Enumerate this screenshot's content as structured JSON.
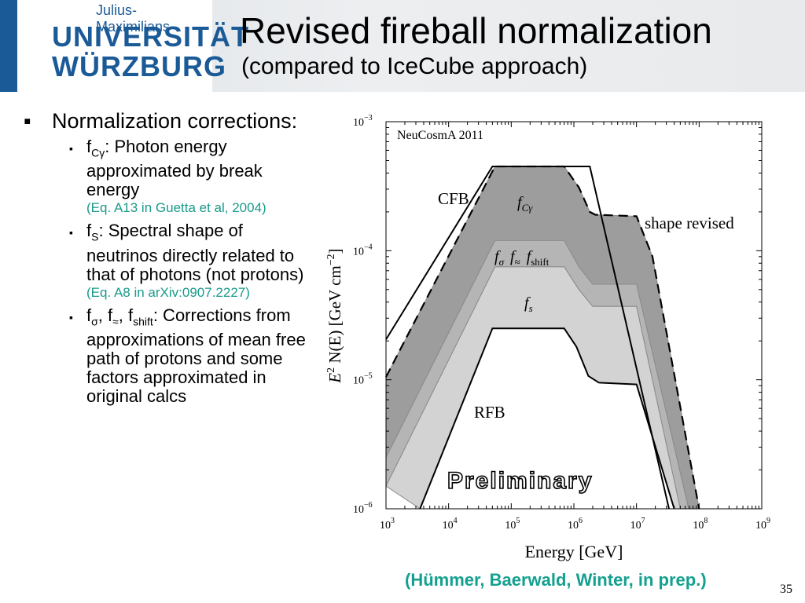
{
  "header": {
    "logo_small": "Julius-Maximilians-",
    "logo_line1": "UNIVERSITÄT",
    "logo_line2": "WÜRZBURG",
    "title": "Revised fireball normalization",
    "subtitle": "(compared to IceCube approach)"
  },
  "bullets": {
    "main": "Normalization corrections:",
    "items": [
      {
        "symbol": "f",
        "sub": "Cγ",
        "text": ": Photon energy approximated by break energy",
        "ref": "(Eq. A13 in Guetta et al, 2004)"
      },
      {
        "symbol": "f",
        "sub": "S",
        "text": ": Spectral shape of neutrinos directly related to that of photons (not protons)",
        "ref": "(Eq. A8 in arXiv:0907.2227)"
      },
      {
        "symbol": "f",
        "sub": "σ",
        "sep1": ", f",
        "sub2": "≈",
        "sep2": ", f",
        "sub3": "shift",
        "text": ": Corrections from approximations of mean free path of protons and some factors approximated in original calcs",
        "ref": ""
      }
    ]
  },
  "chart_data": {
    "type": "area",
    "title": "NeuCosmA 2011",
    "xlabel": "Energy [GeV]",
    "ylabel_main": "E",
    "ylabel_sup": "2",
    "ylabel_rest": " N(E) [GeV cm",
    "ylabel_sup2": "−2",
    "ylabel_end": "]",
    "xscale": "log",
    "yscale": "log",
    "xlim": [
      1000,
      1000000000
    ],
    "ylim": [
      1e-06,
      0.001
    ],
    "x_ticks": [
      {
        "base": "10",
        "exp": "3",
        "value": 1000
      },
      {
        "base": "10",
        "exp": "4",
        "value": 10000
      },
      {
        "base": "10",
        "exp": "5",
        "value": 100000
      },
      {
        "base": "10",
        "exp": "6",
        "value": 1000000
      },
      {
        "base": "10",
        "exp": "7",
        "value": 10000000
      },
      {
        "base": "10",
        "exp": "8",
        "value": 100000000
      },
      {
        "base": "10",
        "exp": "9",
        "value": 1000000000
      }
    ],
    "y_ticks": [
      {
        "base": "10",
        "exp": "−6",
        "value": 1e-06
      },
      {
        "base": "10",
        "exp": "−5",
        "value": 1e-05
      },
      {
        "base": "10",
        "exp": "−4",
        "value": 0.0001
      },
      {
        "base": "10",
        "exp": "−3",
        "value": 0.001
      }
    ],
    "series": [
      {
        "name": "CFB",
        "style": "solid",
        "color": "#000000",
        "points": [
          [
            1000,
            2.05e-05
          ],
          [
            50000,
            0.00045
          ],
          [
            1800000,
            0.00045
          ],
          [
            33000000,
            1e-06
          ]
        ]
      },
      {
        "name": "shape revised",
        "style": "dashed",
        "color": "#000000",
        "points": [
          [
            1000,
            1.05e-05
          ],
          [
            55000,
            0.00045
          ],
          [
            700000,
            0.00045
          ],
          [
            1200000,
            0.00031
          ],
          [
            1800000,
            0.0002
          ],
          [
            2200000,
            0.00019
          ],
          [
            10000000,
            0.000185
          ],
          [
            18000000,
            9e-05
          ],
          [
            100000000,
            1e-06
          ]
        ]
      },
      {
        "name": "RFB",
        "style": "solid",
        "color": "#000000",
        "points": [
          [
            3500,
            1e-06
          ],
          [
            50000,
            2.5e-05
          ],
          [
            700000,
            2.5e-05
          ],
          [
            1100000,
            1.8e-05
          ],
          [
            1700000,
            1.07e-05
          ],
          [
            2500000,
            9.5e-06
          ],
          [
            10000000,
            9.2e-06
          ],
          [
            40000000,
            1e-06
          ]
        ]
      }
    ],
    "bands": [
      {
        "label": "f_Cγ",
        "color": "#9d9d9d",
        "upper": [
          [
            1000,
            1.05e-05
          ],
          [
            55000,
            0.00045
          ],
          [
            700000,
            0.00045
          ],
          [
            1200000,
            0.00031
          ],
          [
            1800000,
            0.0002
          ],
          [
            2200000,
            0.00019
          ],
          [
            10000000,
            0.000185
          ],
          [
            18000000,
            9e-05
          ],
          [
            100000000,
            1e-06
          ]
        ],
        "lower": [
          [
            1000,
            2.5e-06
          ],
          [
            55000,
            0.00012
          ],
          [
            700000,
            0.00012
          ],
          [
            1200000,
            7.5e-05
          ],
          [
            2000000,
            5.5e-05
          ],
          [
            10000000,
            5.5e-05
          ],
          [
            68000000,
            1e-06
          ]
        ]
      },
      {
        "label": "f_σ f_≈ f_shift",
        "color": "#b5b5b5",
        "upper": [
          [
            1000,
            2.5e-06
          ],
          [
            55000,
            0.00012
          ],
          [
            700000,
            0.00012
          ],
          [
            1200000,
            7.5e-05
          ],
          [
            2000000,
            5.5e-05
          ],
          [
            10000000,
            5.5e-05
          ],
          [
            68000000,
            1e-06
          ]
        ],
        "lower": [
          [
            1000,
            1.5e-06
          ],
          [
            55000,
            7.5e-05
          ],
          [
            700000,
            7.5e-05
          ],
          [
            1200000,
            5e-05
          ],
          [
            2000000,
            3.7e-05
          ],
          [
            10000000,
            3.7e-05
          ],
          [
            50000000,
            1e-06
          ]
        ]
      },
      {
        "label": "f_s",
        "color": "#d3d3d3",
        "upper": [
          [
            1000,
            1.5e-06
          ],
          [
            55000,
            7.5e-05
          ],
          [
            700000,
            7.5e-05
          ],
          [
            1200000,
            5e-05
          ],
          [
            2000000,
            3.7e-05
          ],
          [
            10000000,
            3.7e-05
          ],
          [
            50000000,
            1e-06
          ]
        ],
        "lower": [
          [
            3500,
            1e-06
          ],
          [
            50000,
            2.5e-05
          ],
          [
            700000,
            2.5e-05
          ],
          [
            1100000,
            1.8e-05
          ],
          [
            1700000,
            1.07e-05
          ],
          [
            2500000,
            9.5e-06
          ],
          [
            10000000,
            9.2e-06
          ],
          [
            40000000,
            1e-06
          ]
        ]
      }
    ],
    "annotations": {
      "cfb": "CFB",
      "rfb": "RFB",
      "shape_revised": "shape revised",
      "f_cgamma": "f",
      "f_cgamma_sub": "Cγ",
      "f_sigma": "f",
      "f_sigma_sub": "σ",
      "f_approx": "f",
      "f_approx_sub": "≈",
      "f_shift": "f",
      "f_shift_sub": "shift",
      "f_s": "f",
      "f_s_sub": "s",
      "preliminary": "Preliminary"
    },
    "grid": false,
    "legend": "none"
  },
  "footer": {
    "credit": "(Hümmer, Baerwald, Winter, in prep.)",
    "page": "35"
  }
}
